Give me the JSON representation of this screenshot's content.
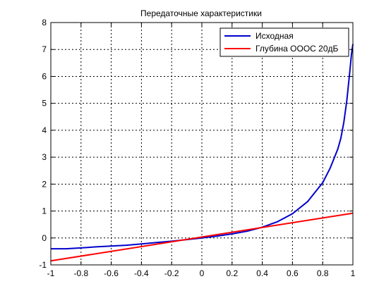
{
  "chart_data": {
    "type": "line",
    "title": "Передаточные характеристики",
    "xlabel": "",
    "ylabel": "",
    "xlim": [
      -1,
      1
    ],
    "ylim": [
      -1,
      8
    ],
    "grid": true,
    "grid_style": "dotted",
    "legend_position": "top-right",
    "x_ticks": [
      "-1",
      "-0.8",
      "-0.6",
      "-0.4",
      "-0.2",
      "0",
      "0.2",
      "0.4",
      "0.6",
      "0.8",
      "1"
    ],
    "y_ticks": [
      "-1",
      "0",
      "1",
      "2",
      "3",
      "4",
      "5",
      "6",
      "7",
      "8"
    ],
    "series": [
      {
        "name": "Исходная",
        "color": "#0000cc",
        "x": [
          -1,
          -0.9,
          -0.8,
          -0.7,
          -0.6,
          -0.5,
          -0.4,
          -0.3,
          -0.2,
          -0.1,
          0,
          0.1,
          0.2,
          0.3,
          0.4,
          0.5,
          0.6,
          0.7,
          0.75,
          0.8,
          0.85,
          0.9,
          0.92,
          0.94,
          0.96,
          0.98,
          0.99,
          1
        ],
        "y": [
          -0.4,
          -0.4,
          -0.37,
          -0.33,
          -0.3,
          -0.27,
          -0.22,
          -0.17,
          -0.12,
          -0.06,
          0,
          0.07,
          0.15,
          0.25,
          0.4,
          0.6,
          0.9,
          1.35,
          1.7,
          2.05,
          2.6,
          3.3,
          3.7,
          4.3,
          5.1,
          6.2,
          6.8,
          7.2
        ]
      },
      {
        "name": "Глубина ОООС 20дБ",
        "color": "#ff0000",
        "x": [
          -1,
          1
        ],
        "y": [
          -0.85,
          0.92
        ]
      }
    ]
  }
}
